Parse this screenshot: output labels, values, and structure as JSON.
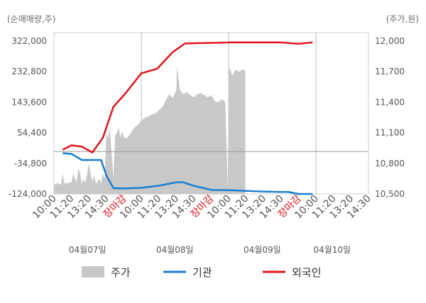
{
  "chart_data": {
    "type": "line",
    "left_unit": "(순매매량,주)",
    "right_unit": "(주가,원)",
    "left_axis": {
      "ticks": [
        "322,000",
        "232,800",
        "143,600",
        "54,400",
        "-34,800",
        "-124,000"
      ],
      "min": -124000,
      "max": 322000
    },
    "right_axis": {
      "ticks": [
        "12,000",
        "11,700",
        "11,400",
        "11,100",
        "10,800",
        "10,500"
      ],
      "min": 10500,
      "max": 12000
    },
    "x_tick_labels": [
      "10:00",
      "11:20",
      "13:20",
      "14:30",
      "장마감",
      "10:00",
      "11:20",
      "13:20",
      "14:30",
      "장마감",
      "10:00",
      "11:20",
      "13:20",
      "14:30",
      "장마감",
      "10:00",
      "11:20",
      "13:20",
      "14:30"
    ],
    "x_tick_red": [
      4,
      9,
      14
    ],
    "dates": [
      "04월07일",
      "04월08일",
      "04월09일",
      "04월10일"
    ],
    "legend": [
      "주가",
      "기관",
      "외국인"
    ],
    "colors": {
      "price": "#c8c8c8",
      "institution": "#1a7fd1",
      "foreign": "#e0141c"
    },
    "series": [
      {
        "name": "외국인",
        "x": [
          0.5,
          1.0,
          1.6,
          2.2,
          2.8,
          3.4,
          4.1,
          5.0,
          5.9,
          6.8,
          7.5,
          8.4,
          9.4,
          10.0,
          11.0,
          12.0,
          13.0,
          14.0,
          14.8
        ],
        "y": [
          5000,
          18000,
          14000,
          -3000,
          40000,
          130000,
          170000,
          228000,
          241000,
          290000,
          315000,
          316000,
          317000,
          318000,
          318000,
          318000,
          318000,
          314000,
          318000
        ]
      },
      {
        "name": "기관",
        "x": [
          0.5,
          1.0,
          1.6,
          2.2,
          2.7,
          3.0,
          3.4,
          4.0,
          5.0,
          6.0,
          7.0,
          7.4,
          8.0,
          9.0,
          10.0,
          11.0,
          12.0,
          13.0,
          13.4,
          14.0,
          14.8
        ],
        "y": [
          -5000,
          -7000,
          -25000,
          -25000,
          -25000,
          -70000,
          -107000,
          -108000,
          -106000,
          -100000,
          -90000,
          -90000,
          -100000,
          -112000,
          -113000,
          -115000,
          -117000,
          -118000,
          -118000,
          -124000,
          -124000
        ]
      }
    ],
    "price_series": {
      "name": "주가",
      "x": [
        0.0,
        0.1,
        0.2,
        0.3,
        0.4,
        0.5,
        0.6,
        0.7,
        0.8,
        0.9,
        1.0,
        1.1,
        1.2,
        1.3,
        1.4,
        1.5,
        1.6,
        1.7,
        1.8,
        1.9,
        2.0,
        2.1,
        2.2,
        2.3,
        2.4,
        2.5,
        2.6,
        2.7,
        2.8,
        2.9,
        3.0,
        3.1,
        3.2,
        3.3,
        3.4,
        3.5,
        3.6,
        3.7,
        3.8,
        3.9,
        4.0,
        4.2,
        4.4,
        4.6,
        4.8,
        5.0,
        5.2,
        5.4,
        5.6,
        5.8,
        6.0,
        6.2,
        6.4,
        6.6,
        6.8,
        7.0,
        7.05,
        7.2,
        7.4,
        7.6,
        7.8,
        8.0,
        8.2,
        8.4,
        8.6,
        8.8,
        9.0,
        9.2,
        9.4,
        9.6,
        9.8,
        9.95,
        10.0,
        10.05,
        10.2,
        10.4,
        10.6,
        10.8,
        10.95
      ],
      "y": [
        10600,
        10590,
        10610,
        10600,
        10590,
        10700,
        10600,
        10610,
        10600,
        10620,
        10610,
        10700,
        10650,
        10620,
        10750,
        10700,
        10600,
        10650,
        10610,
        10700,
        10800,
        10700,
        10620,
        10690,
        10600,
        10620,
        10650,
        10600,
        10700,
        10650,
        11100,
        11050,
        11140,
        10900,
        10660,
        11070,
        11100,
        11150,
        11050,
        11120,
        11050,
        11050,
        11100,
        11150,
        11180,
        11220,
        11250,
        11260,
        11280,
        11290,
        11320,
        11350,
        11420,
        11480,
        11440,
        11520,
        11760,
        11520,
        11480,
        11500,
        11470,
        11450,
        11480,
        11490,
        11470,
        11450,
        11470,
        11410,
        11400,
        11430,
        11400,
        10550,
        11680,
        11750,
        11660,
        11720,
        11700,
        11720,
        11710
      ],
      "y_axis": "right"
    }
  }
}
